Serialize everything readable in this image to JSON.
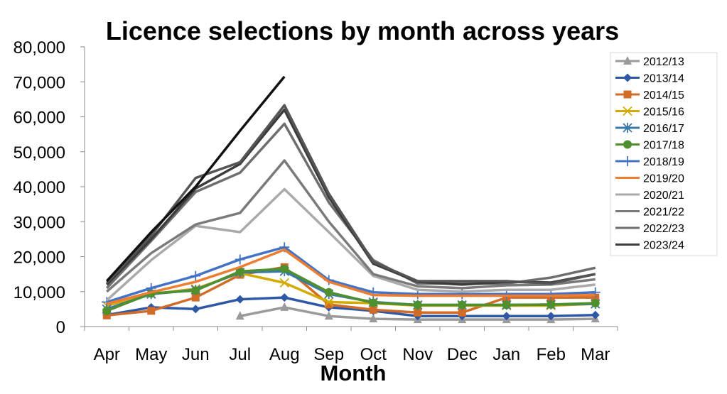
{
  "chart_data": {
    "type": "line",
    "title": "Licence selections by month across years",
    "xlabel": "Month",
    "ylabel": "",
    "categories": [
      "Apr",
      "May",
      "Jun",
      "Jul",
      "Aug",
      "Sep",
      "Oct",
      "Nov",
      "Dec",
      "Jan",
      "Feb",
      "Mar"
    ],
    "ylim": [
      0,
      80000
    ],
    "yticks": [
      0,
      10000,
      20000,
      30000,
      40000,
      50000,
      60000,
      70000,
      80000
    ],
    "ytick_labels": [
      "0",
      "10,000",
      "20,000",
      "30,000",
      "40,000",
      "50,000",
      "60,000",
      "70,000",
      "80,000"
    ],
    "grid": false,
    "legend_position": "right",
    "series": [
      {
        "name": "2012/13",
        "color": "#9a9a9a",
        "marker": "triangle",
        "values": [
          null,
          null,
          null,
          3000,
          5500,
          3000,
          2200,
          2000,
          2000,
          2000,
          2000,
          2200
        ]
      },
      {
        "name": "2013/14",
        "color": "#2e58a6",
        "marker": "diamond",
        "values": [
          3300,
          5500,
          5000,
          7800,
          8300,
          5500,
          4500,
          3000,
          3000,
          3000,
          3000,
          3300
        ]
      },
      {
        "name": "2014/15",
        "color": "#d16b28",
        "marker": "square",
        "values": [
          3200,
          4500,
          8300,
          14800,
          17000,
          6300,
          4800,
          4000,
          4000,
          8300,
          8300,
          8300
        ]
      },
      {
        "name": "2015/16",
        "color": "#d4a900",
        "marker": "x",
        "values": [
          6000,
          9300,
          10800,
          15300,
          12500,
          7000,
          6700,
          6000,
          6000,
          6000,
          6000,
          6500
        ]
      },
      {
        "name": "2016/17",
        "color": "#3a78a8",
        "marker": "star",
        "values": [
          5000,
          9300,
          10500,
          15500,
          15800,
          9300,
          7000,
          6200,
          6200,
          6200,
          6300,
          6500
        ]
      },
      {
        "name": "2017/18",
        "color": "#4e8f2e",
        "marker": "circle",
        "values": [
          4500,
          9500,
          10300,
          15800,
          16500,
          9800,
          6800,
          6200,
          6200,
          6200,
          6300,
          6700
        ]
      },
      {
        "name": "2018/19",
        "color": "#4472c4",
        "marker": "plus",
        "values": [
          7000,
          11000,
          14500,
          19200,
          22700,
          13300,
          9800,
          9300,
          9300,
          9300,
          9300,
          9800
        ]
      },
      {
        "name": "2019/20",
        "color": "#ed7d31",
        "marker": "none",
        "values": [
          6500,
          9800,
          12800,
          17000,
          22000,
          12800,
          9000,
          8800,
          8800,
          8800,
          8800,
          9000
        ]
      },
      {
        "name": "2020/21",
        "color": "#aaaaaa",
        "marker": "none",
        "values": [
          7500,
          19000,
          28800,
          27000,
          39300,
          27000,
          14500,
          10500,
          10000,
          10500,
          10500,
          12000
        ]
      },
      {
        "name": "2021/22",
        "color": "#7a7a7a",
        "marker": "none",
        "values": [
          10000,
          21000,
          29200,
          32500,
          47500,
          30000,
          15000,
          11500,
          11000,
          11800,
          12000,
          13500
        ]
      },
      {
        "name": "2022/23",
        "color": "#6e6e6e",
        "marker": "none",
        "values": [
          11000,
          24500,
          38500,
          44000,
          58000,
          35500,
          19000,
          12300,
          12300,
          12300,
          14000,
          16800
        ]
      },
      {
        "name": "2023/24",
        "color": "#3c3c3c",
        "marker": "none",
        "values": [
          12000,
          25000,
          39500,
          46500,
          62000,
          37000,
          18000,
          12800,
          12000,
          12800,
          12600,
          15000
        ]
      },
      {
        "name": "",
        "color": "#555555",
        "marker": "none",
        "values": [
          12500,
          26000,
          42500,
          47000,
          63300,
          38000,
          18500,
          13000,
          13000,
          13000,
          12300,
          15000
        ]
      },
      {
        "name": "",
        "color": "#111111",
        "marker": "none",
        "values": [
          13000,
          27000,
          40000,
          56000,
          71500,
          null,
          null,
          null,
          null,
          null,
          null,
          null
        ]
      }
    ]
  }
}
